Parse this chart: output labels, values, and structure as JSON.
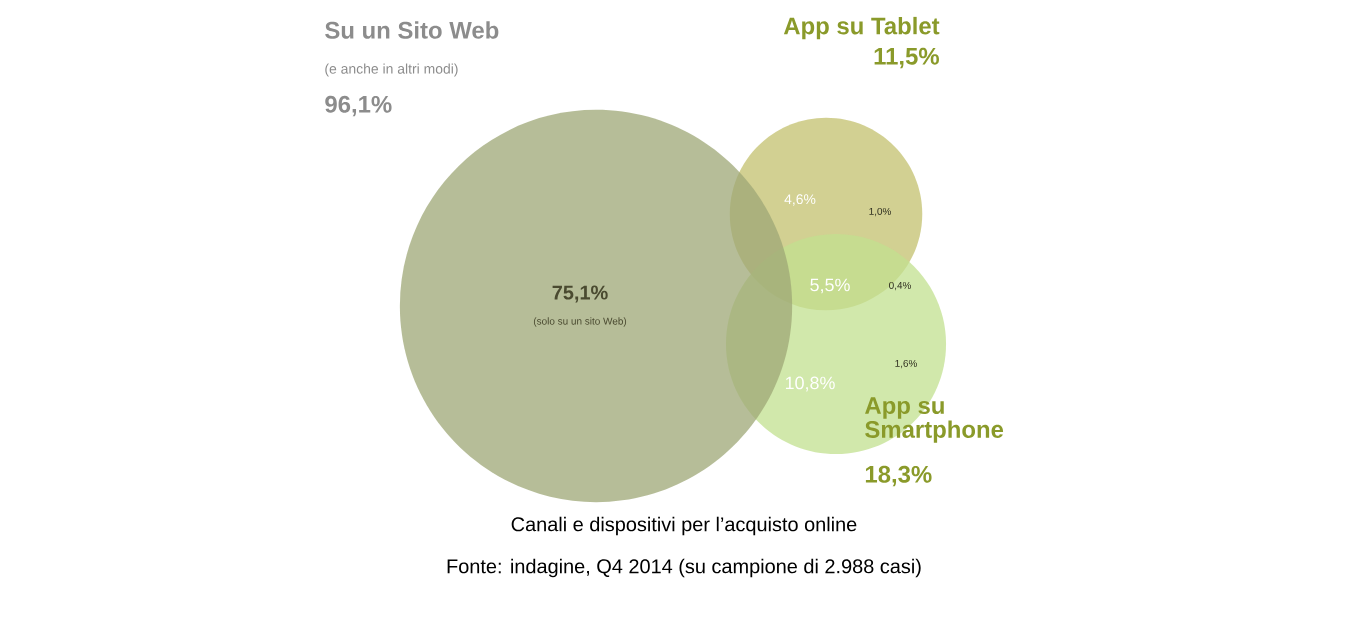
{
  "chart_data": {
    "type": "other",
    "title": "Canali e dispositivi per l’acquisto online",
    "categories": [
      "Su un Sito Web",
      "App su Tablet",
      "App su Smartphone"
    ],
    "values": [
      96.1,
      11.5,
      18.3
    ],
    "value_labels": [
      "96,1%",
      "11,5%",
      "18,3%"
    ],
    "colors": [
      "#9ea775",
      "#c3c06e",
      "#c2e08f"
    ],
    "annotations": [
      "(e anche in altri modi)",
      "75,1%",
      "(solo su un sito Web)",
      "4,6%",
      "1,0%",
      "5,5%",
      "0,4%",
      "1,6%",
      "10,8%",
      "Fonte: indagine, Q4 2014 (su campione di 2.988 casi)"
    ]
  }
}
